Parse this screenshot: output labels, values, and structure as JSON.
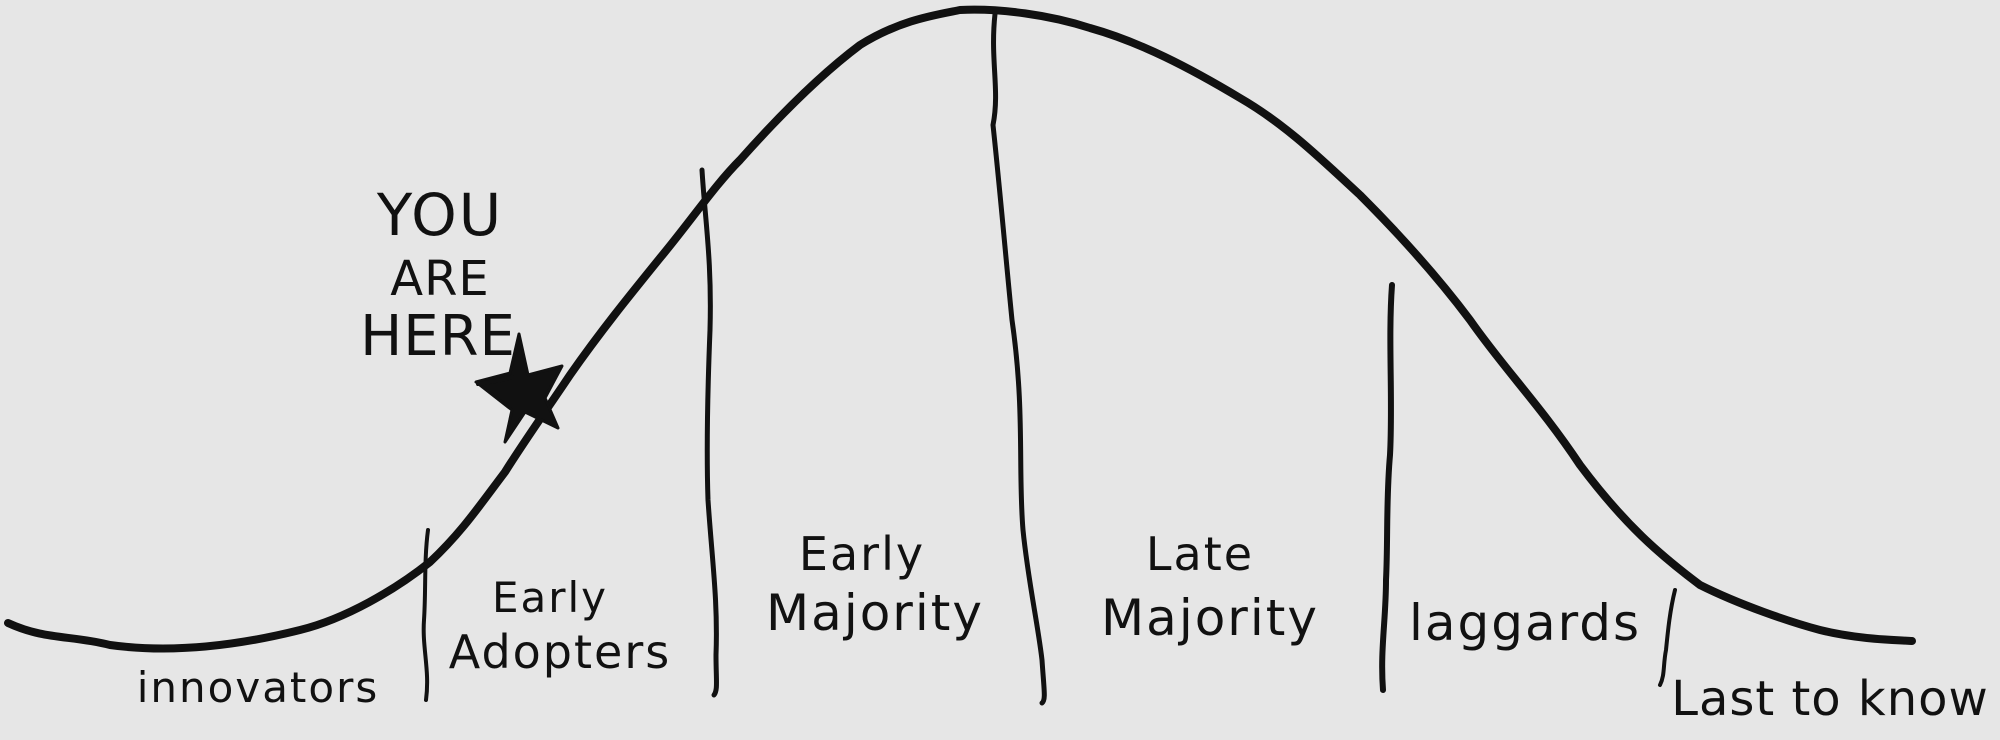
{
  "colors": {
    "background": "#e6e6e6",
    "ink": "#111111"
  },
  "marker": {
    "text_line_1": "YOU",
    "text_line_2": "ARE",
    "text_line_3": "HERE",
    "icon": "star-icon"
  },
  "segments": [
    {
      "line_1": "innovators",
      "line_2": ""
    },
    {
      "line_1": "Early",
      "line_2": "Adopters"
    },
    {
      "line_1": "Early",
      "line_2": "Majority"
    },
    {
      "line_1": "Late",
      "line_2": "Majority"
    },
    {
      "line_1": "laggards",
      "line_2": ""
    },
    {
      "line_1": "Last to know",
      "line_2": ""
    }
  ]
}
